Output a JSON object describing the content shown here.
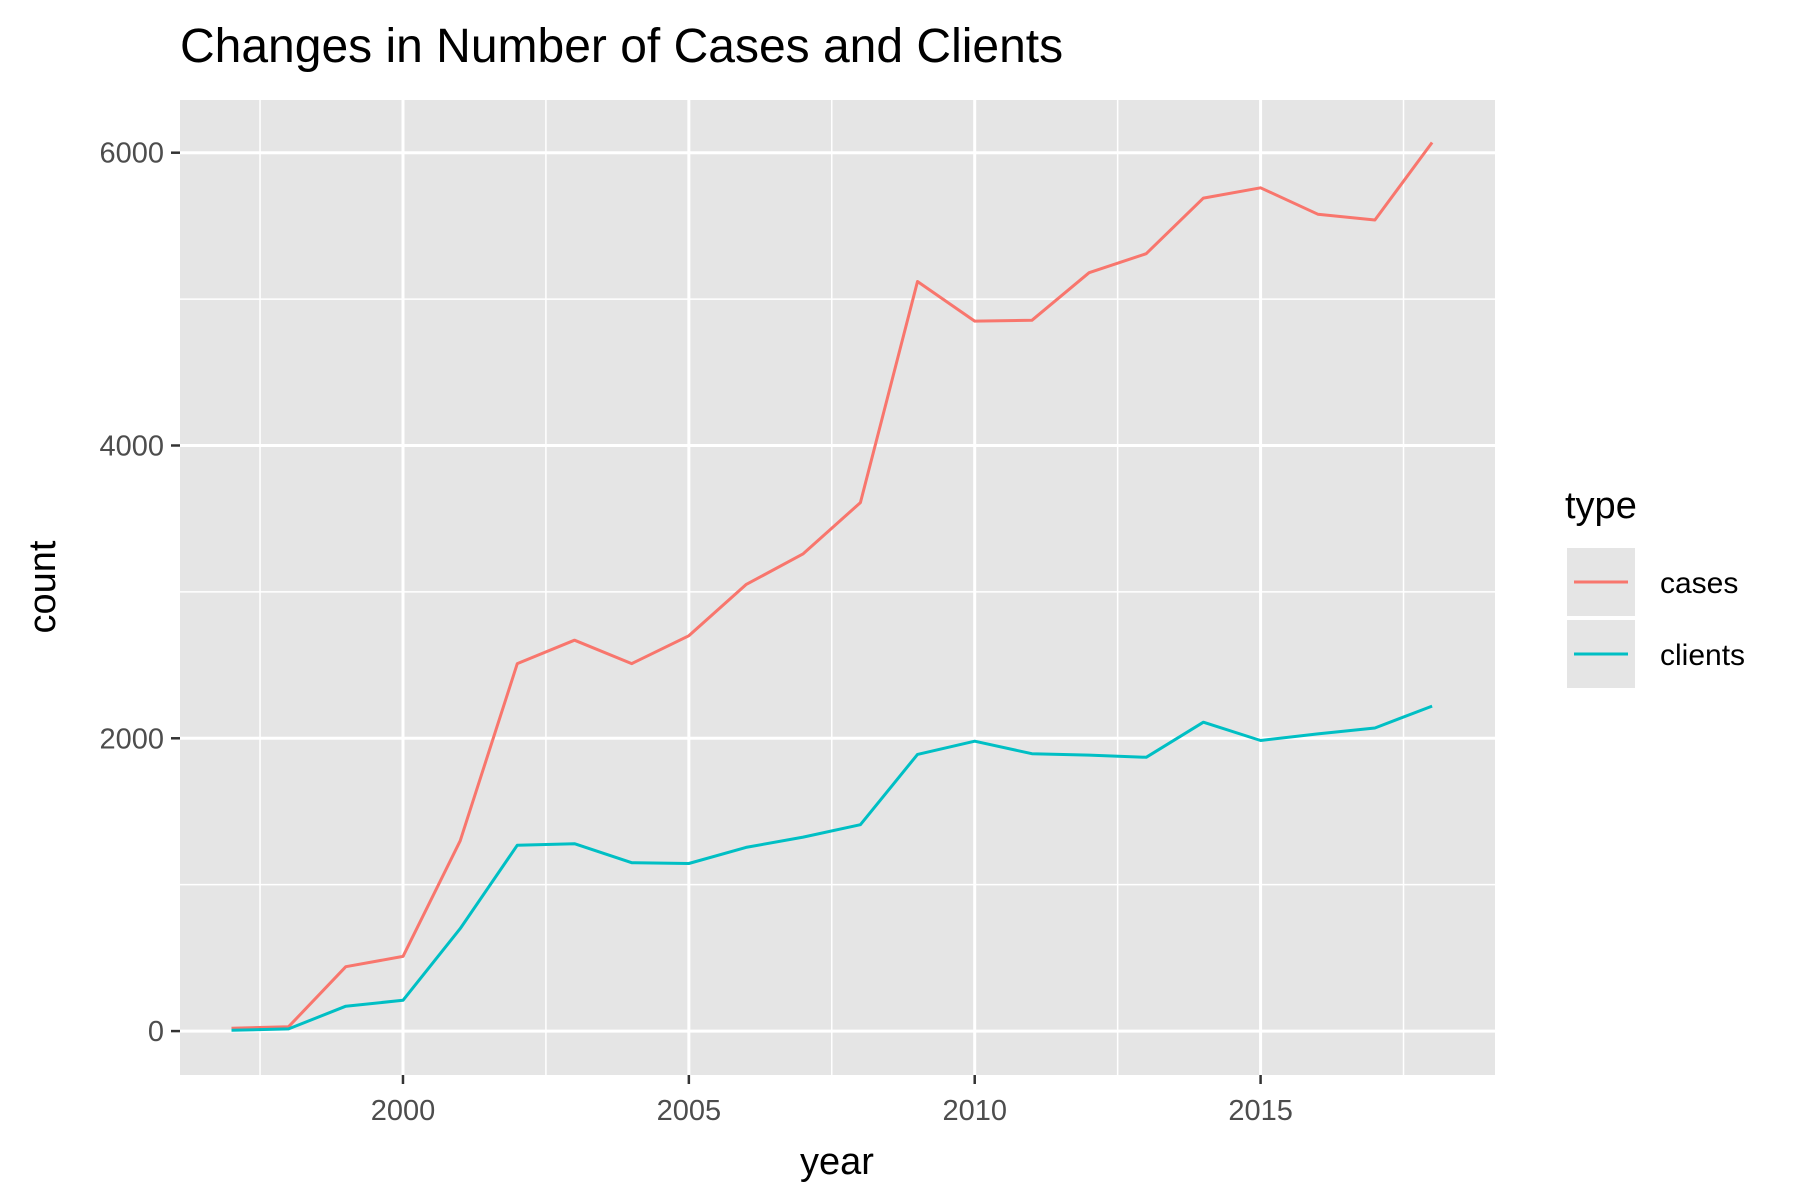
{
  "chart_data": {
    "type": "line",
    "title": "Changes in Number of Cases and Clients",
    "xlabel": "year",
    "ylabel": "count",
    "xlim": [
      1996.1,
      2019.1
    ],
    "ylim": [
      -300,
      6360
    ],
    "x_ticks": [
      2000,
      2005,
      2010,
      2015
    ],
    "x_tick_labels": [
      "2000",
      "2005",
      "2010",
      "2015"
    ],
    "x_minor_ticks": [
      1997.5,
      2002.5,
      2007.5,
      2012.5,
      2017.5
    ],
    "y_ticks": [
      0,
      2000,
      4000,
      6000
    ],
    "y_tick_labels": [
      "0",
      "2000",
      "4000",
      "6000"
    ],
    "y_minor_ticks": [
      1000,
      3000,
      5000
    ],
    "grid": true,
    "panel_background": "#e5e5e5",
    "legend": {
      "title": "type",
      "position": "right"
    },
    "x": [
      1997,
      1998,
      1999,
      2000,
      2001,
      2002,
      2003,
      2004,
      2005,
      2006,
      2007,
      2008,
      2009,
      2010,
      2011,
      2012,
      2013,
      2014,
      2015,
      2016,
      2017,
      2018
    ],
    "series": [
      {
        "name": "cases",
        "color": "#f8766d",
        "values": [
          20,
          30,
          440,
          510,
          1300,
          2510,
          2670,
          2510,
          2700,
          3050,
          3260,
          3610,
          5120,
          4850,
          4855,
          5180,
          5310,
          5690,
          5760,
          5580,
          5540,
          6070
        ]
      },
      {
        "name": "clients",
        "color": "#00bfc4",
        "values": [
          5,
          15,
          170,
          210,
          700,
          1270,
          1280,
          1150,
          1145,
          1255,
          1325,
          1410,
          1890,
          1980,
          1895,
          1885,
          1870,
          2110,
          1985,
          2030,
          2070,
          2220
        ]
      }
    ]
  }
}
